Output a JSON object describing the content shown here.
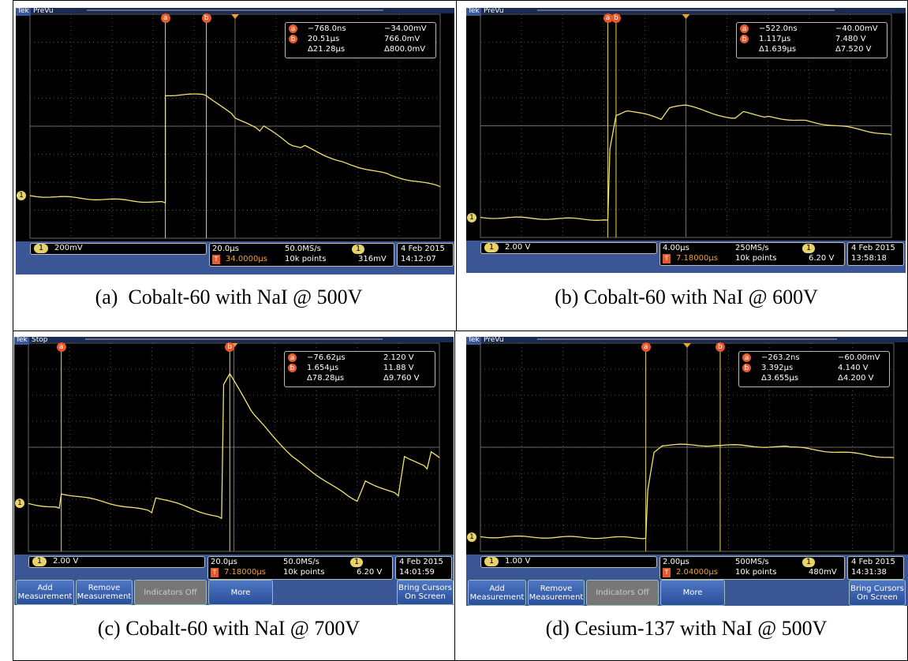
{
  "brand": "Tek",
  "buttons": [
    "Add Measurement",
    "Remove Measurement",
    "Indicators Off",
    "More",
    "Bring Cursors On Screen"
  ],
  "panels": [
    {
      "status": "PreVu",
      "cursors": [
        "a",
        "b"
      ],
      "readout": [
        [
          "−768.0ns",
          "−34.00mV"
        ],
        [
          "20.51µs",
          "766.0mV"
        ],
        [
          "Δ21.28µs",
          "Δ800.0mV"
        ]
      ],
      "channel": "1",
      "scale": "200mV",
      "timebase": "20.0µs",
      "trigger_time": "34.0000µs",
      "sample_rate": "50.0MS/s",
      "record": "10k points",
      "trigger_level": "316mV",
      "date": "4 Feb 2015",
      "time": "14:12:07",
      "caption": "(a)  Cobalt-60 with NaI @ 500V"
    },
    {
      "status": "PreVu",
      "cursors": [
        "a",
        "b"
      ],
      "readout": [
        [
          "−522.0ns",
          "−40.00mV"
        ],
        [
          "1.117µs",
          "7.480 V"
        ],
        [
          "Δ1.639µs",
          "Δ7.520 V"
        ]
      ],
      "channel": "1",
      "scale": "2.00 V",
      "timebase": "4.00µs",
      "trigger_time": "7.18000µs",
      "sample_rate": "250MS/s",
      "record": "10k points",
      "trigger_level": "6.20 V",
      "date": "4 Feb 2015",
      "time": "13:58:18",
      "caption": "(b) Cobalt-60 with NaI @ 600V"
    },
    {
      "status": "Stop",
      "cursors": [
        "a",
        "b"
      ],
      "readout": [
        [
          "−76.62µs",
          "2.120 V"
        ],
        [
          "1.654µs",
          "11.88 V"
        ],
        [
          "Δ78.28µs",
          "Δ9.760 V"
        ]
      ],
      "channel": "1",
      "scale": "2.00 V",
      "timebase": "20.0µs",
      "trigger_time": "7.18000µs",
      "sample_rate": "50.0MS/s",
      "record": "10k points",
      "trigger_level": "6.20 V",
      "date": "4 Feb 2015",
      "time": "14:01:59",
      "caption": "(c) Cobalt-60 with NaI @ 700V"
    },
    {
      "status": "PreVu",
      "cursors": [
        "a",
        "b"
      ],
      "readout": [
        [
          "−263.2ns",
          "−60.00mV"
        ],
        [
          "3.392µs",
          "4.140 V"
        ],
        [
          "Δ3.655µs",
          "Δ4.200 V"
        ]
      ],
      "channel": "1",
      "scale": "1.00 V",
      "timebase": "2.00µs",
      "trigger_time": "2.04000µs",
      "sample_rate": "500MS/s",
      "record": "10k points",
      "trigger_level": "480mV",
      "date": "4 Feb 2015",
      "time": "14:31:38",
      "caption": "(d) Cesium-137 with NaI @ 500V"
    }
  ]
}
